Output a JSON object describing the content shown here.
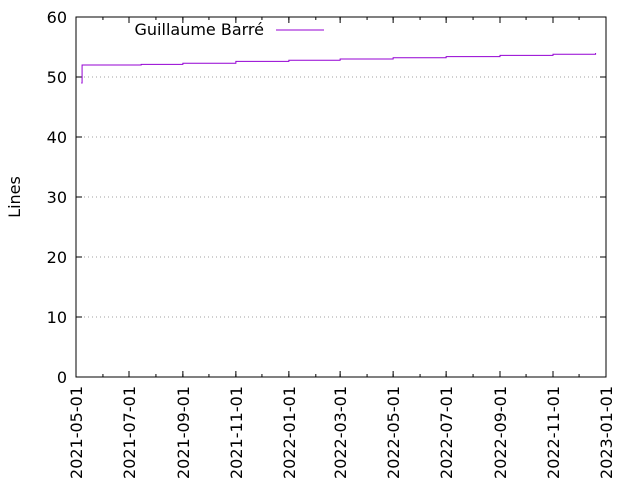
{
  "chart_data": {
    "type": "line",
    "title": "",
    "xlabel": "",
    "ylabel": "Lines",
    "x_type": "date",
    "xlim": [
      "2021-05-01",
      "2023-01-01"
    ],
    "ylim": [
      0,
      60
    ],
    "x_ticks": [
      "2021-05-01",
      "2021-07-01",
      "2021-09-01",
      "2021-11-01",
      "2022-01-01",
      "2022-03-01",
      "2022-05-01",
      "2022-07-01",
      "2022-09-01",
      "2022-11-01",
      "2023-01-01"
    ],
    "y_ticks": [
      0,
      10,
      20,
      30,
      40,
      50,
      60
    ],
    "grid": "horizontal",
    "legend_position": "top-left",
    "series": [
      {
        "name": "Guillaume Barré",
        "color": "#9400d3",
        "line_style": "step",
        "x": [
          "2021-05-07",
          "2021-05-08",
          "2021-06-01",
          "2021-07-15",
          "2021-09-01",
          "2021-11-01",
          "2022-01-01",
          "2022-03-01",
          "2022-05-01",
          "2022-07-01",
          "2022-09-01",
          "2022-11-01",
          "2022-12-20"
        ],
        "y": [
          49,
          52,
          52,
          52.1,
          52.3,
          52.6,
          52.8,
          53,
          53.2,
          53.4,
          53.6,
          53.8,
          54
        ]
      }
    ]
  }
}
